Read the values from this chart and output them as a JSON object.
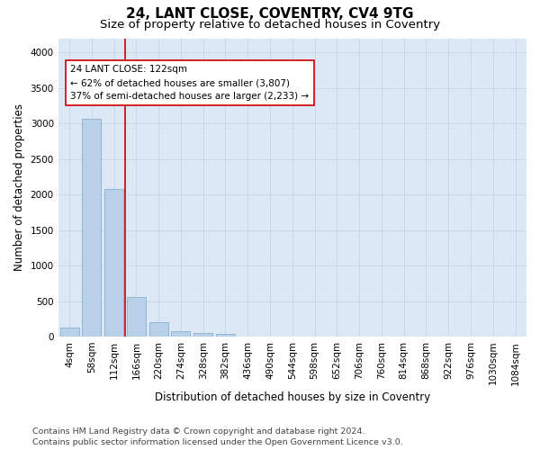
{
  "title": "24, LANT CLOSE, COVENTRY, CV4 9TG",
  "subtitle": "Size of property relative to detached houses in Coventry",
  "xlabel": "Distribution of detached houses by size in Coventry",
  "ylabel": "Number of detached properties",
  "footer_line1": "Contains HM Land Registry data © Crown copyright and database right 2024.",
  "footer_line2": "Contains public sector information licensed under the Open Government Licence v3.0.",
  "categories": [
    "4sqm",
    "58sqm",
    "112sqm",
    "166sqm",
    "220sqm",
    "274sqm",
    "328sqm",
    "382sqm",
    "436sqm",
    "490sqm",
    "544sqm",
    "598sqm",
    "652sqm",
    "706sqm",
    "760sqm",
    "814sqm",
    "868sqm",
    "922sqm",
    "976sqm",
    "1030sqm",
    "1084sqm"
  ],
  "values": [
    130,
    3060,
    2080,
    560,
    200,
    80,
    55,
    40,
    0,
    0,
    0,
    0,
    0,
    0,
    0,
    0,
    0,
    0,
    0,
    0,
    0
  ],
  "bar_color": "#b8d0e8",
  "bar_edge_color": "#8ab0d0",
  "vline_color": "#cc0000",
  "annotation_line1": "24 LANT CLOSE: 122sqm",
  "annotation_line2": "← 62% of detached houses are smaller (3,807)",
  "annotation_line3": "37% of semi-detached houses are larger (2,233) →",
  "annotation_box_facecolor": "#ffffff",
  "annotation_box_edgecolor": "#cc0000",
  "ylim": [
    0,
    4200
  ],
  "yticks": [
    0,
    500,
    1000,
    1500,
    2000,
    2500,
    3000,
    3500,
    4000
  ],
  "grid_color": "#c8d8eb",
  "bg_color": "#dce8f5",
  "fig_bg_color": "#ffffff",
  "title_fontsize": 11,
  "subtitle_fontsize": 9.5,
  "axis_label_fontsize": 8.5,
  "tick_fontsize": 7.5,
  "annotation_fontsize": 7.5,
  "footer_fontsize": 6.8
}
